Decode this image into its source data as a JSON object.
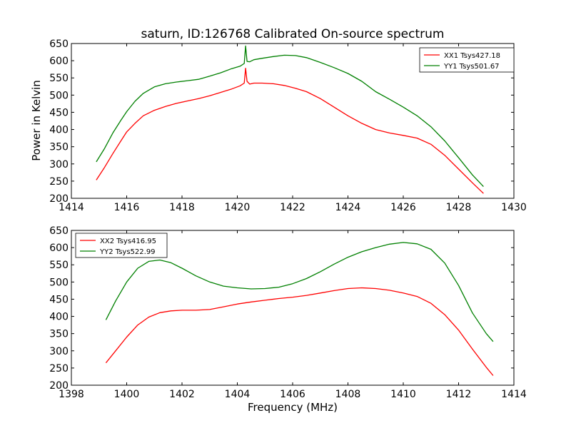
{
  "figure": {
    "title": "saturn, ID:126768 Calibrated On-source spectrum",
    "xlabel": "Frequency (MHz)"
  },
  "colors": {
    "red": "#ff0000",
    "green": "#008000"
  },
  "chart_data": [
    {
      "type": "line",
      "title": "saturn, ID:126768 Calibrated On-source spectrum",
      "xlabel": "",
      "ylabel": "Power in Kelvin",
      "xlim": [
        1414,
        1430
      ],
      "ylim": [
        200,
        650
      ],
      "xticks": [
        "1414",
        "1416",
        "1418",
        "1420",
        "1422",
        "1424",
        "1426",
        "1428",
        "1430"
      ],
      "yticks": [
        "200",
        "250",
        "300",
        "350",
        "400",
        "450",
        "500",
        "550",
        "600",
        "650"
      ],
      "grid": false,
      "legend": "top-right",
      "series": [
        {
          "name": "XX1 Tsys427.18",
          "color": "#ff0000",
          "x": [
            1414.9,
            1415.2,
            1415.5,
            1415.8,
            1416.0,
            1416.3,
            1416.6,
            1417.0,
            1417.4,
            1417.8,
            1418.2,
            1418.6,
            1419.0,
            1419.4,
            1419.8,
            1420.1,
            1420.25,
            1420.3,
            1420.35,
            1420.45,
            1420.6,
            1420.9,
            1421.3,
            1421.7,
            1422.1,
            1422.5,
            1423.0,
            1423.5,
            1424.0,
            1424.5,
            1425.0,
            1425.5,
            1426.0,
            1426.5,
            1427.0,
            1427.5,
            1428.0,
            1428.5,
            1428.9
          ],
          "values": [
            253,
            290,
            330,
            368,
            393,
            418,
            440,
            456,
            467,
            476,
            483,
            490,
            498,
            508,
            518,
            527,
            535,
            578,
            540,
            532,
            535,
            535,
            533,
            528,
            520,
            510,
            490,
            465,
            440,
            418,
            400,
            390,
            383,
            375,
            357,
            325,
            285,
            245,
            214
          ]
        },
        {
          "name": "YY1 Tsys501.67",
          "color": "#008000",
          "x": [
            1414.9,
            1415.2,
            1415.5,
            1415.8,
            1416.0,
            1416.3,
            1416.6,
            1417.0,
            1417.4,
            1417.8,
            1418.2,
            1418.6,
            1419.0,
            1419.4,
            1419.8,
            1420.1,
            1420.25,
            1420.3,
            1420.35,
            1420.45,
            1420.6,
            1420.9,
            1421.3,
            1421.7,
            1422.1,
            1422.5,
            1423.0,
            1423.5,
            1424.0,
            1424.5,
            1425.0,
            1425.5,
            1426.0,
            1426.5,
            1427.0,
            1427.5,
            1428.0,
            1428.5,
            1428.9
          ],
          "values": [
            306,
            345,
            390,
            428,
            452,
            482,
            505,
            524,
            533,
            538,
            542,
            546,
            555,
            565,
            577,
            584,
            592,
            643,
            598,
            597,
            603,
            607,
            612,
            616,
            615,
            609,
            595,
            580,
            563,
            540,
            510,
            488,
            465,
            440,
            408,
            367,
            318,
            268,
            234
          ]
        }
      ]
    },
    {
      "type": "line",
      "title": "",
      "xlabel": "Frequency (MHz)",
      "ylabel": "",
      "xlim": [
        1398,
        1414
      ],
      "ylim": [
        200,
        650
      ],
      "xticks": [
        "1398",
        "1400",
        "1402",
        "1404",
        "1406",
        "1408",
        "1410",
        "1412",
        "1414"
      ],
      "yticks": [
        "200",
        "250",
        "300",
        "350",
        "400",
        "450",
        "500",
        "550",
        "600",
        "650"
      ],
      "grid": false,
      "legend": "top-left",
      "series": [
        {
          "name": "XX2 Tsys416.95",
          "color": "#ff0000",
          "x": [
            1399.25,
            1399.6,
            1400.0,
            1400.4,
            1400.8,
            1401.2,
            1401.6,
            1402.0,
            1402.5,
            1403.0,
            1403.5,
            1404.0,
            1404.5,
            1405.0,
            1405.5,
            1406.0,
            1406.5,
            1407.0,
            1407.5,
            1408.0,
            1408.5,
            1409.0,
            1409.5,
            1410.0,
            1410.5,
            1411.0,
            1411.5,
            1412.0,
            1412.5,
            1413.0,
            1413.25
          ],
          "values": [
            265,
            300,
            340,
            375,
            398,
            411,
            416,
            418,
            418,
            420,
            428,
            436,
            442,
            447,
            452,
            456,
            461,
            468,
            475,
            481,
            483,
            481,
            476,
            468,
            458,
            438,
            405,
            360,
            305,
            252,
            228
          ]
        },
        {
          "name": "YY2 Tsys522.99",
          "color": "#008000",
          "x": [
            1399.25,
            1399.6,
            1400.0,
            1400.4,
            1400.8,
            1401.2,
            1401.6,
            1402.0,
            1402.5,
            1403.0,
            1403.5,
            1404.0,
            1404.5,
            1405.0,
            1405.5,
            1406.0,
            1406.5,
            1407.0,
            1407.5,
            1408.0,
            1408.5,
            1409.0,
            1409.5,
            1410.0,
            1410.5,
            1411.0,
            1411.5,
            1412.0,
            1412.5,
            1413.0,
            1413.25
          ],
          "values": [
            390,
            445,
            500,
            540,
            560,
            564,
            556,
            540,
            518,
            500,
            488,
            483,
            480,
            481,
            485,
            495,
            510,
            530,
            552,
            572,
            588,
            600,
            610,
            615,
            611,
            595,
            555,
            490,
            410,
            350,
            327
          ]
        }
      ]
    }
  ]
}
